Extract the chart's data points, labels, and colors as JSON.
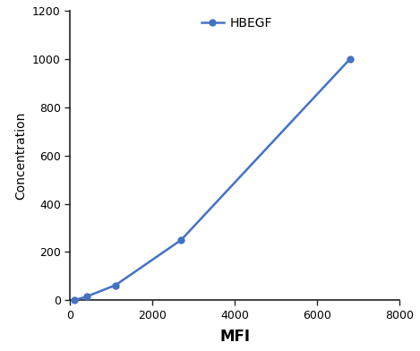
{
  "x": [
    100,
    400,
    1100,
    2700,
    6800
  ],
  "y": [
    0,
    15,
    62,
    250,
    1000
  ],
  "line_color": "#4472C4",
  "marker": "o",
  "marker_size": 5,
  "marker_color": "#4472C4",
  "legend_label": "HBEGF",
  "xlabel": "MFI",
  "ylabel": "Concentration",
  "xlim": [
    0,
    8000
  ],
  "ylim": [
    0,
    1200
  ],
  "xticks": [
    0,
    2000,
    4000,
    6000,
    8000
  ],
  "yticks": [
    0,
    200,
    400,
    600,
    800,
    1000,
    1200
  ],
  "xlabel_fontsize": 12,
  "ylabel_fontsize": 10,
  "tick_fontsize": 9,
  "legend_fontsize": 10,
  "spine_color": "#222222",
  "background_color": "#ffffff"
}
